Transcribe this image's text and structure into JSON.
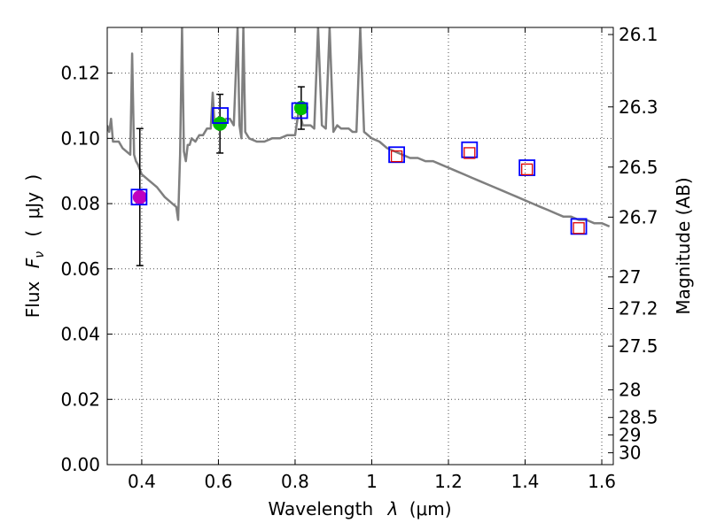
{
  "chart_data": {
    "type": "line",
    "title": "",
    "xlabel_parts": [
      "Wavelength",
      "λ",
      "(μm)"
    ],
    "ylabel_parts": [
      "Flux",
      "F",
      "ν",
      "(",
      "μJy",
      ")"
    ],
    "y2label": "Magnitude (AB)",
    "xlim": [
      0.31,
      1.63
    ],
    "ylim": [
      0.0,
      0.134
    ],
    "grid": true,
    "x_ticks": [
      0.4,
      0.6,
      0.8,
      1.0,
      1.2,
      1.4,
      1.6
    ],
    "x_tick_labels": [
      "0.4",
      "0.6",
      "0.8",
      "1",
      "1.2",
      "1.4",
      "1.6"
    ],
    "y_ticks": [
      0.0,
      0.02,
      0.04,
      0.06,
      0.08,
      0.1,
      0.12
    ],
    "y_tick_labels": [
      "0.00",
      "0.02",
      "0.04",
      "0.06",
      "0.08",
      "0.10",
      "0.12"
    ],
    "y2_ticks": [
      {
        "mag": 26.1,
        "label": "26.1"
      },
      {
        "mag": 26.3,
        "label": "26.3"
      },
      {
        "mag": 26.5,
        "label": "26.5"
      },
      {
        "mag": 26.7,
        "label": "26.7"
      },
      {
        "mag": 27.0,
        "label": "27"
      },
      {
        "mag": 27.2,
        "label": "27.2"
      },
      {
        "mag": 27.5,
        "label": "27.5"
      },
      {
        "mag": 28.0,
        "label": "28"
      },
      {
        "mag": 28.5,
        "label": "28.5"
      },
      {
        "mag": 29.0,
        "label": "29"
      },
      {
        "mag": 30.0,
        "label": "30"
      }
    ],
    "series": [
      {
        "name": "model-sed",
        "kind": "line",
        "color": "#7f7f7f",
        "x": [
          0.31,
          0.315,
          0.32,
          0.325,
          0.33,
          0.34,
          0.35,
          0.36,
          0.37,
          0.375,
          0.38,
          0.385,
          0.39,
          0.4,
          0.42,
          0.44,
          0.46,
          0.48,
          0.49,
          0.495,
          0.5,
          0.505,
          0.51,
          0.515,
          0.52,
          0.525,
          0.53,
          0.54,
          0.55,
          0.56,
          0.57,
          0.58,
          0.585,
          0.59,
          0.6,
          0.61,
          0.62,
          0.63,
          0.64,
          0.65,
          0.655,
          0.66,
          0.665,
          0.67,
          0.68,
          0.7,
          0.72,
          0.74,
          0.76,
          0.78,
          0.8,
          0.81,
          0.82,
          0.83,
          0.84,
          0.85,
          0.86,
          0.87,
          0.88,
          0.89,
          0.9,
          0.91,
          0.92,
          0.93,
          0.94,
          0.95,
          0.96,
          0.97,
          0.98,
          0.99,
          1.0,
          1.02,
          1.04,
          1.06,
          1.08,
          1.1,
          1.12,
          1.14,
          1.16,
          1.18,
          1.2,
          1.22,
          1.24,
          1.26,
          1.28,
          1.3,
          1.32,
          1.34,
          1.36,
          1.38,
          1.4,
          1.42,
          1.44,
          1.46,
          1.48,
          1.5,
          1.52,
          1.54,
          1.56,
          1.58,
          1.6,
          1.62
        ],
        "y": [
          0.104,
          0.102,
          0.106,
          0.099,
          0.099,
          0.099,
          0.097,
          0.096,
          0.095,
          0.126,
          0.095,
          0.093,
          0.092,
          0.089,
          0.087,
          0.085,
          0.082,
          0.08,
          0.079,
          0.075,
          0.095,
          0.134,
          0.096,
          0.093,
          0.098,
          0.098,
          0.1,
          0.099,
          0.101,
          0.101,
          0.103,
          0.103,
          0.114,
          0.104,
          0.105,
          0.105,
          0.106,
          0.106,
          0.104,
          0.134,
          0.104,
          0.1,
          0.134,
          0.102,
          0.1,
          0.099,
          0.099,
          0.1,
          0.1,
          0.101,
          0.101,
          0.109,
          0.104,
          0.104,
          0.104,
          0.103,
          0.134,
          0.104,
          0.103,
          0.134,
          0.102,
          0.104,
          0.103,
          0.103,
          0.103,
          0.102,
          0.102,
          0.134,
          0.102,
          0.101,
          0.1,
          0.099,
          0.097,
          0.096,
          0.095,
          0.094,
          0.094,
          0.093,
          0.093,
          0.092,
          0.091,
          0.09,
          0.089,
          0.088,
          0.087,
          0.086,
          0.085,
          0.084,
          0.083,
          0.082,
          0.081,
          0.08,
          0.079,
          0.078,
          0.077,
          0.076,
          0.076,
          0.075,
          0.075,
          0.074,
          0.074,
          0.073
        ]
      },
      {
        "name": "observed-magenta",
        "kind": "points",
        "marker": "circle",
        "color": "#bf00bf",
        "points": [
          {
            "x": 0.395,
            "y": 0.082,
            "err": 0.021
          }
        ]
      },
      {
        "name": "observed-green",
        "kind": "points",
        "marker": "circle",
        "color": "#00bf00",
        "points": [
          {
            "x": 0.604,
            "y": 0.1045,
            "err": 0.009
          },
          {
            "x": 0.816,
            "y": 0.1093,
            "err": 0.0065
          }
        ]
      },
      {
        "name": "model-photometry-blue",
        "kind": "points",
        "marker": "square-open",
        "color": "#0000ff",
        "points": [
          {
            "x": 0.393,
            "y": 0.082
          },
          {
            "x": 0.605,
            "y": 0.107
          },
          {
            "x": 0.812,
            "y": 0.1085
          },
          {
            "x": 1.065,
            "y": 0.095
          },
          {
            "x": 1.255,
            "y": 0.0965
          },
          {
            "x": 1.405,
            "y": 0.091
          },
          {
            "x": 1.54,
            "y": 0.073
          }
        ]
      },
      {
        "name": "upper-limits-red",
        "kind": "points",
        "marker": "square-open",
        "color": "#dd0000",
        "points": [
          {
            "x": 1.065,
            "y": 0.0945
          },
          {
            "x": 1.255,
            "y": 0.0955
          },
          {
            "x": 1.405,
            "y": 0.0905
          },
          {
            "x": 1.54,
            "y": 0.0725
          }
        ]
      }
    ]
  }
}
